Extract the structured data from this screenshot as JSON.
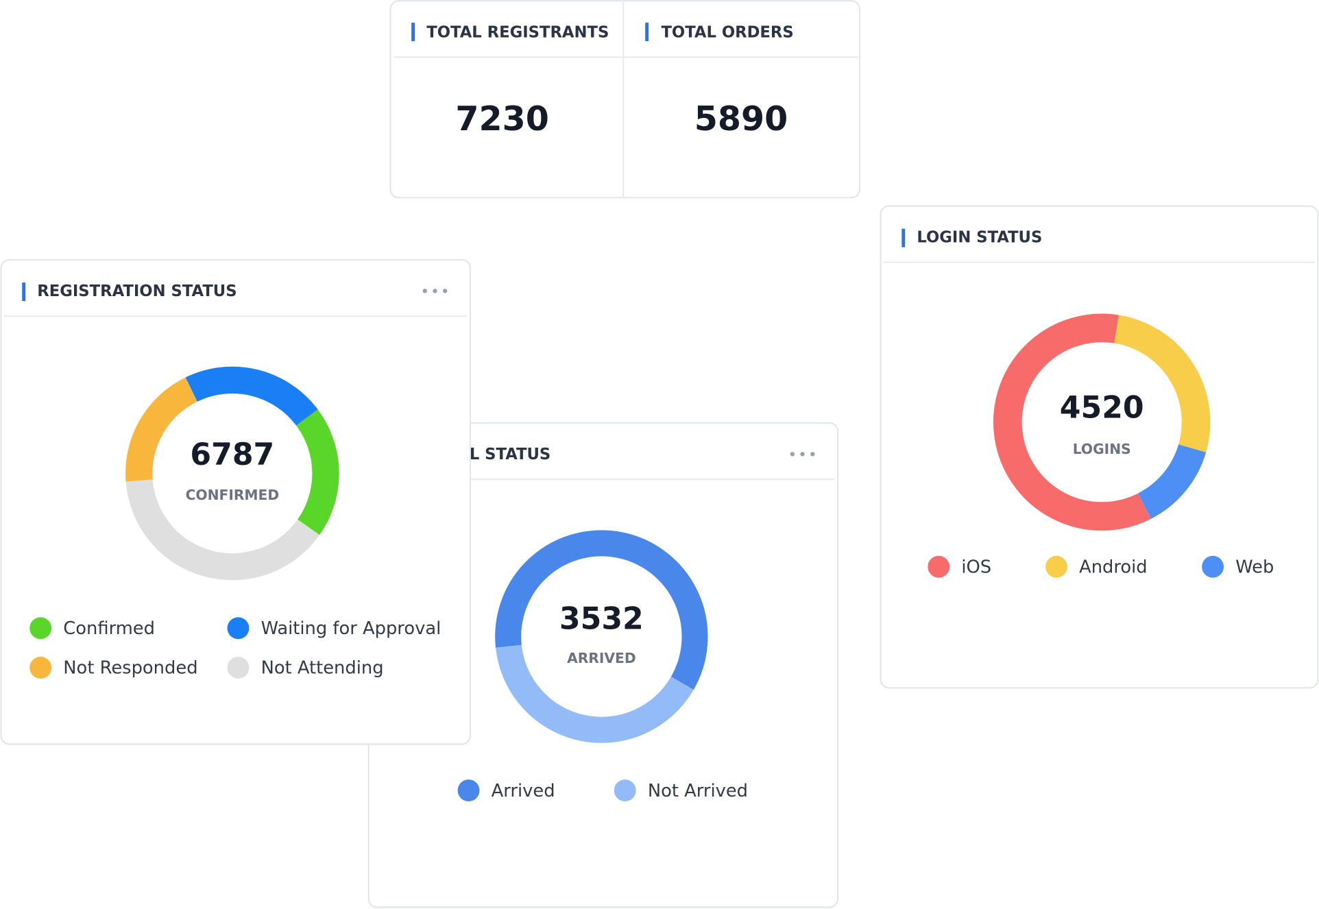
{
  "kpis": [
    {
      "label": "TOTAL REGISTRANTS",
      "value": 7230
    },
    {
      "label": "TOTAL ORDERS",
      "value": 5890
    }
  ],
  "chart_data": [
    {
      "type": "donut",
      "title": "REGISTRATION STATUS",
      "center_value": 6787,
      "center_label": "CONFIRMED",
      "categories": [
        "Confirmed",
        "Waiting for Approval",
        "Not Responded",
        "Not Attending"
      ],
      "values": [
        20,
        22,
        19,
        39
      ],
      "colors": [
        "#5ad62a",
        "#1a7ef5",
        "#f9b63c",
        "#dfdfdf"
      ]
    },
    {
      "type": "donut",
      "title": "ARRIVAL STATUS",
      "center_value": 3532,
      "center_label": "ARRIVED",
      "categories": [
        "Arrived",
        "Not Arrived"
      ],
      "values": [
        60,
        40
      ],
      "colors": [
        "#4a87eb",
        "#93bbf8"
      ]
    },
    {
      "type": "donut",
      "title": "LOGIN STATUS",
      "center_value": 4520,
      "center_label": "LOGINS",
      "categories": [
        "iOS",
        "Android",
        "Web"
      ],
      "values": [
        60,
        27,
        13
      ],
      "colors": [
        "#f76b6b",
        "#f7cd4a",
        "#4d8ff5"
      ]
    }
  ]
}
